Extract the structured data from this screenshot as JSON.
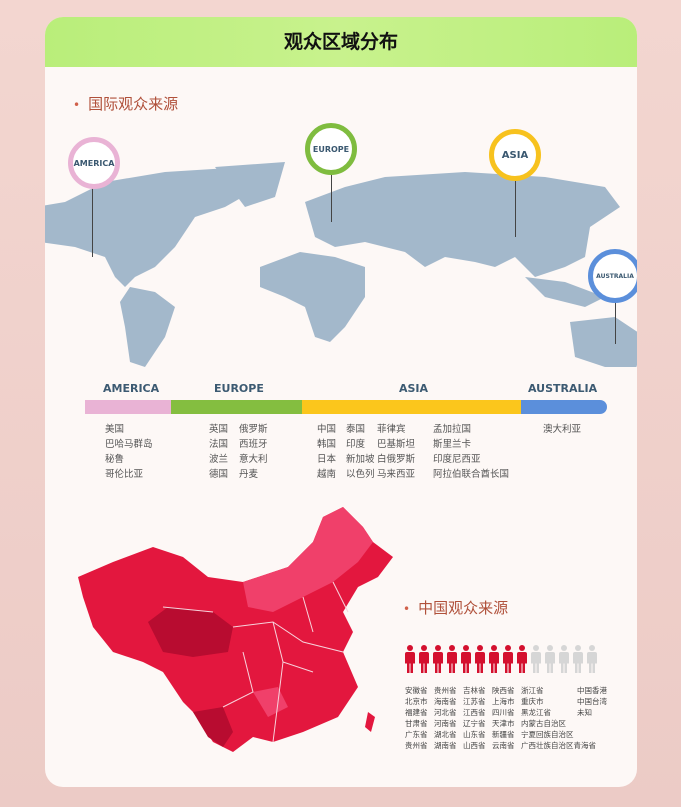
{
  "title": "观众区域分布",
  "international": {
    "heading": "国际观众来源",
    "pins": [
      {
        "label": "AMERICA",
        "color": "#e9b3d5"
      },
      {
        "label": "EUROPE",
        "color": "#7fbc3f"
      },
      {
        "label": "ASIA",
        "color": "#f7c21e"
      },
      {
        "label": "AUSTRALIA",
        "color": "#5b8fdb"
      }
    ],
    "regions": [
      {
        "label": "AMERICA",
        "color": "#e9b3d5",
        "share": 0.165,
        "columns": [
          [
            "美国",
            "巴哈马群岛",
            "秘鲁",
            "哥伦比亚"
          ]
        ]
      },
      {
        "label": "EUROPE",
        "color": "#84be40",
        "share": 0.25,
        "columns": [
          [
            "英国",
            "法国",
            "波兰",
            "德国"
          ],
          [
            "俄罗斯",
            "西班牙",
            "意大利",
            "丹麦"
          ]
        ]
      },
      {
        "label": "ASIA",
        "color": "#fbc61c",
        "share": 0.42,
        "columns": [
          [
            "中国",
            "韩国",
            "日本",
            "越南"
          ],
          [
            "泰国",
            "印度",
            "新加坡",
            "以色列"
          ],
          [
            "菲律宾",
            "巴基斯坦",
            "白俄罗斯",
            "马来西亚"
          ],
          [
            "孟加拉国",
            "斯里兰卡",
            "印度尼西亚",
            "阿拉伯联合酋长国"
          ]
        ]
      },
      {
        "label": "AUSTRALIA",
        "color": "#5b8fdb",
        "share": 0.165,
        "columns": [
          [
            "澳大利亚"
          ]
        ]
      }
    ]
  },
  "china": {
    "heading": "中国观众来源",
    "people_total": 14,
    "people_filled": 9,
    "filled_color": "#d4102e",
    "empty_color": "#d6d6d6",
    "columns": [
      [
        "安徽省",
        "北京市",
        "福建省",
        "甘肃省",
        "广东省",
        "贵州省"
      ],
      [
        "贵州省",
        "海南省",
        "河北省",
        "河南省",
        "湖北省",
        "湖南省"
      ],
      [
        "吉林省",
        "江苏省",
        "江西省",
        "辽宁省",
        "山东省",
        "山西省"
      ],
      [
        "陕西省",
        "上海市",
        "四川省",
        "天津市",
        "新疆省",
        "云南省"
      ],
      [
        "浙江省",
        "重庆市",
        "黑龙江省",
        "内蒙古自治区",
        "宁夏回族自治区",
        "广西壮族自治区青海省"
      ],
      [
        "中国香港",
        "中国台湾",
        "未知"
      ]
    ]
  }
}
